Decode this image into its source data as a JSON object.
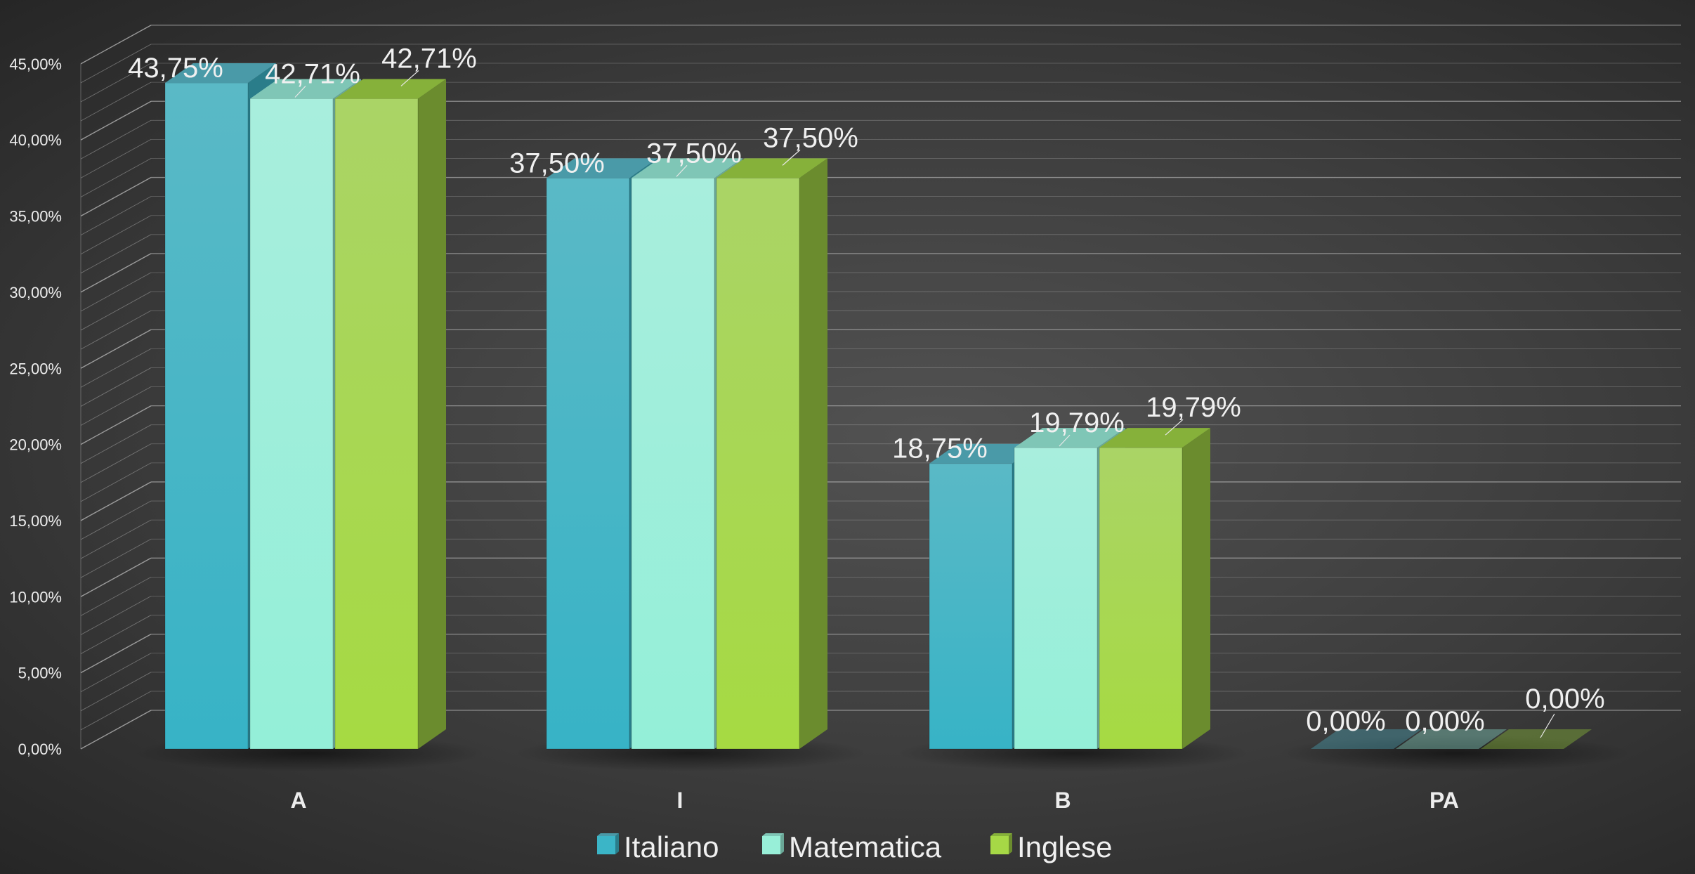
{
  "chart_data": {
    "type": "bar",
    "categories": [
      "A",
      "I",
      "B",
      "PA"
    ],
    "series": [
      {
        "name": "Italiano",
        "values": [
          43.75,
          37.5,
          18.75,
          0.0
        ],
        "labels": [
          "43,75%",
          "37,50%",
          "18,75%",
          "0,00%"
        ]
      },
      {
        "name": "Matematica",
        "values": [
          42.71,
          37.5,
          19.79,
          0.0
        ],
        "labels": [
          "42,71%",
          "37,50%",
          "19,79%",
          "0,00%"
        ]
      },
      {
        "name": "Inglese",
        "values": [
          42.71,
          37.5,
          19.79,
          0.0
        ],
        "labels": [
          "42,71%",
          "37,50%",
          "19,79%",
          "0,00%"
        ]
      }
    ],
    "yticks": [
      "0,00%",
      "5,00%",
      "10,00%",
      "15,00%",
      "20,00%",
      "25,00%",
      "30,00%",
      "35,00%",
      "40,00%",
      "45,00%"
    ],
    "ylim": [
      0,
      45
    ],
    "legend": "bottom",
    "grid": true
  },
  "colors": {
    "Italiano": {
      "front": "#3bb5c7",
      "top": "#4a9aa8",
      "side": "#2a7d8a"
    },
    "Matematica": {
      "front": "#98efd8",
      "top": "#7fc6b6",
      "side": "#6aa797"
    },
    "Inglese": {
      "front": "#a6d846",
      "top": "#86b13a",
      "side": "#6b8c2e"
    }
  }
}
